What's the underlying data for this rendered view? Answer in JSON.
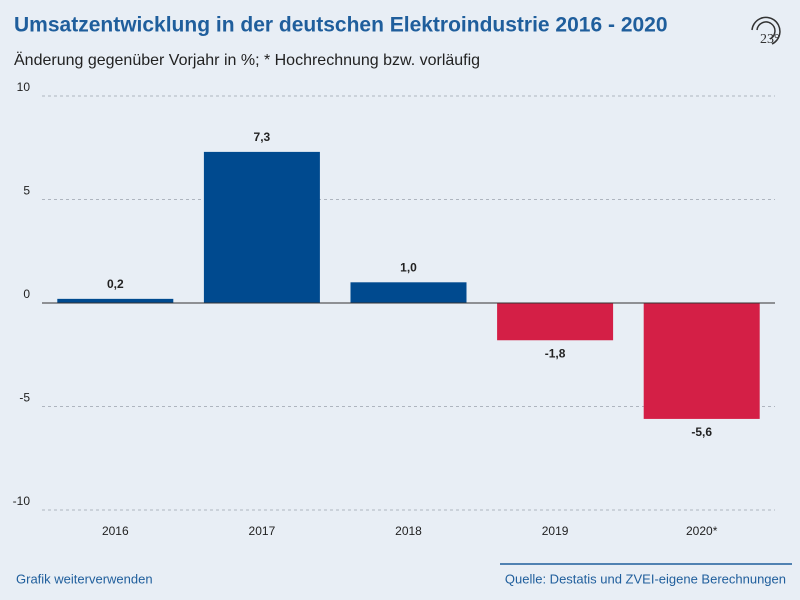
{
  "chart_data": {
    "type": "bar",
    "title": "Umsatzentwicklung in der deutschen Elektroindustrie 2016 - 2020",
    "subtitle": "Änderung gegenüber Vorjahr in %; * Hochrechnung bzw. vorläufig",
    "categories": [
      "2016",
      "2017",
      "2018",
      "2019",
      "2020*"
    ],
    "values": [
      0.2,
      7.3,
      1.0,
      -1.8,
      -5.6
    ],
    "value_labels": [
      "0,2",
      "7,3",
      "1,0",
      "-1,8",
      "-5,6"
    ],
    "colors": [
      "#004a8f",
      "#004a8f",
      "#004a8f",
      "#d41f46",
      "#d41f46"
    ],
    "ylim": [
      -10,
      10
    ],
    "yticks": [
      10,
      5,
      0,
      -5,
      -10
    ],
    "grid": true
  },
  "footer": {
    "link": "Grafik weiterverwenden",
    "source": "Quelle: Destatis und ZVEI-eigene Berechnungen"
  },
  "logo": "23°"
}
